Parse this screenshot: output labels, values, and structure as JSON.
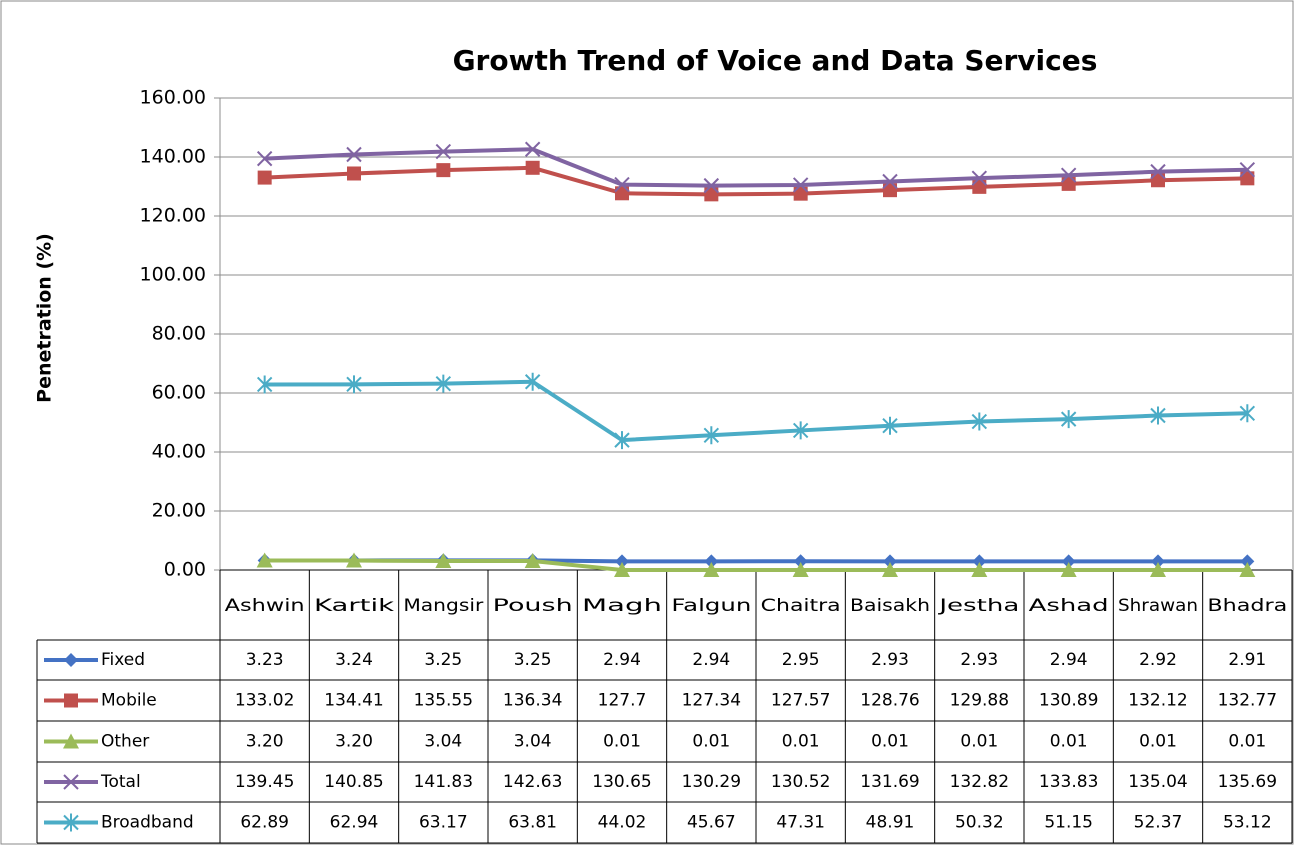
{
  "chart_data": {
    "type": "line",
    "title": "Growth  Trend of Voice and Data Services",
    "y_label": "Penetration (%)",
    "categories": [
      "Ashwin",
      "Kartik",
      "Mangsir",
      "Poush",
      "Magh",
      "Falgun",
      "Chaitra",
      "Baisakh",
      "Jestha",
      "Ashad",
      "Shrawan",
      "Bhadra"
    ],
    "series": [
      {
        "name": "Fixed",
        "color": "#4472c4",
        "marker": "diamond",
        "values": [
          3.23,
          3.24,
          3.25,
          3.25,
          2.94,
          2.94,
          2.95,
          2.93,
          2.93,
          2.94,
          2.92,
          2.91
        ]
      },
      {
        "name": "Mobile",
        "color": "#c0504d",
        "marker": "square",
        "values": [
          133.02,
          134.41,
          135.55,
          136.34,
          127.7,
          127.34,
          127.57,
          128.76,
          129.88,
          130.89,
          132.12,
          132.77
        ]
      },
      {
        "name": "Other",
        "color": "#9bbb59",
        "marker": "triangle",
        "values": [
          3.2,
          3.2,
          3.04,
          3.04,
          0.01,
          0.01,
          0.01,
          0.01,
          0.01,
          0.01,
          0.01,
          0.01
        ],
        "value_labels": [
          "3.20",
          "3.20",
          "3.04",
          "3.04",
          "0.01",
          "0.01",
          "0.01",
          "0.01",
          "0.01",
          "0.01",
          "0.01",
          "0.01"
        ]
      },
      {
        "name": "Total",
        "color": "#8064a2",
        "marker": "x",
        "values": [
          139.45,
          140.85,
          141.83,
          142.63,
          130.65,
          130.29,
          130.52,
          131.69,
          132.82,
          133.83,
          135.04,
          135.69
        ]
      },
      {
        "name": "Broadband",
        "color": "#4bacc6",
        "marker": "star",
        "values": [
          62.89,
          62.94,
          63.17,
          63.81,
          44.02,
          45.67,
          47.31,
          48.91,
          50.32,
          51.15,
          52.37,
          53.12
        ]
      }
    ],
    "ylim": [
      0,
      160
    ],
    "yticks": [
      {
        "value": 0,
        "label": "0.00"
      },
      {
        "value": 20,
        "label": "20.00"
      },
      {
        "value": 40,
        "label": "40.00"
      },
      {
        "value": 60,
        "label": "60.00"
      },
      {
        "value": 80,
        "label": "80.00"
      },
      {
        "value": 100,
        "label": "100.00"
      },
      {
        "value": 120,
        "label": "120.00"
      },
      {
        "value": 140,
        "label": "140.00"
      },
      {
        "value": 160,
        "label": "160.00"
      }
    ],
    "grid": true
  }
}
